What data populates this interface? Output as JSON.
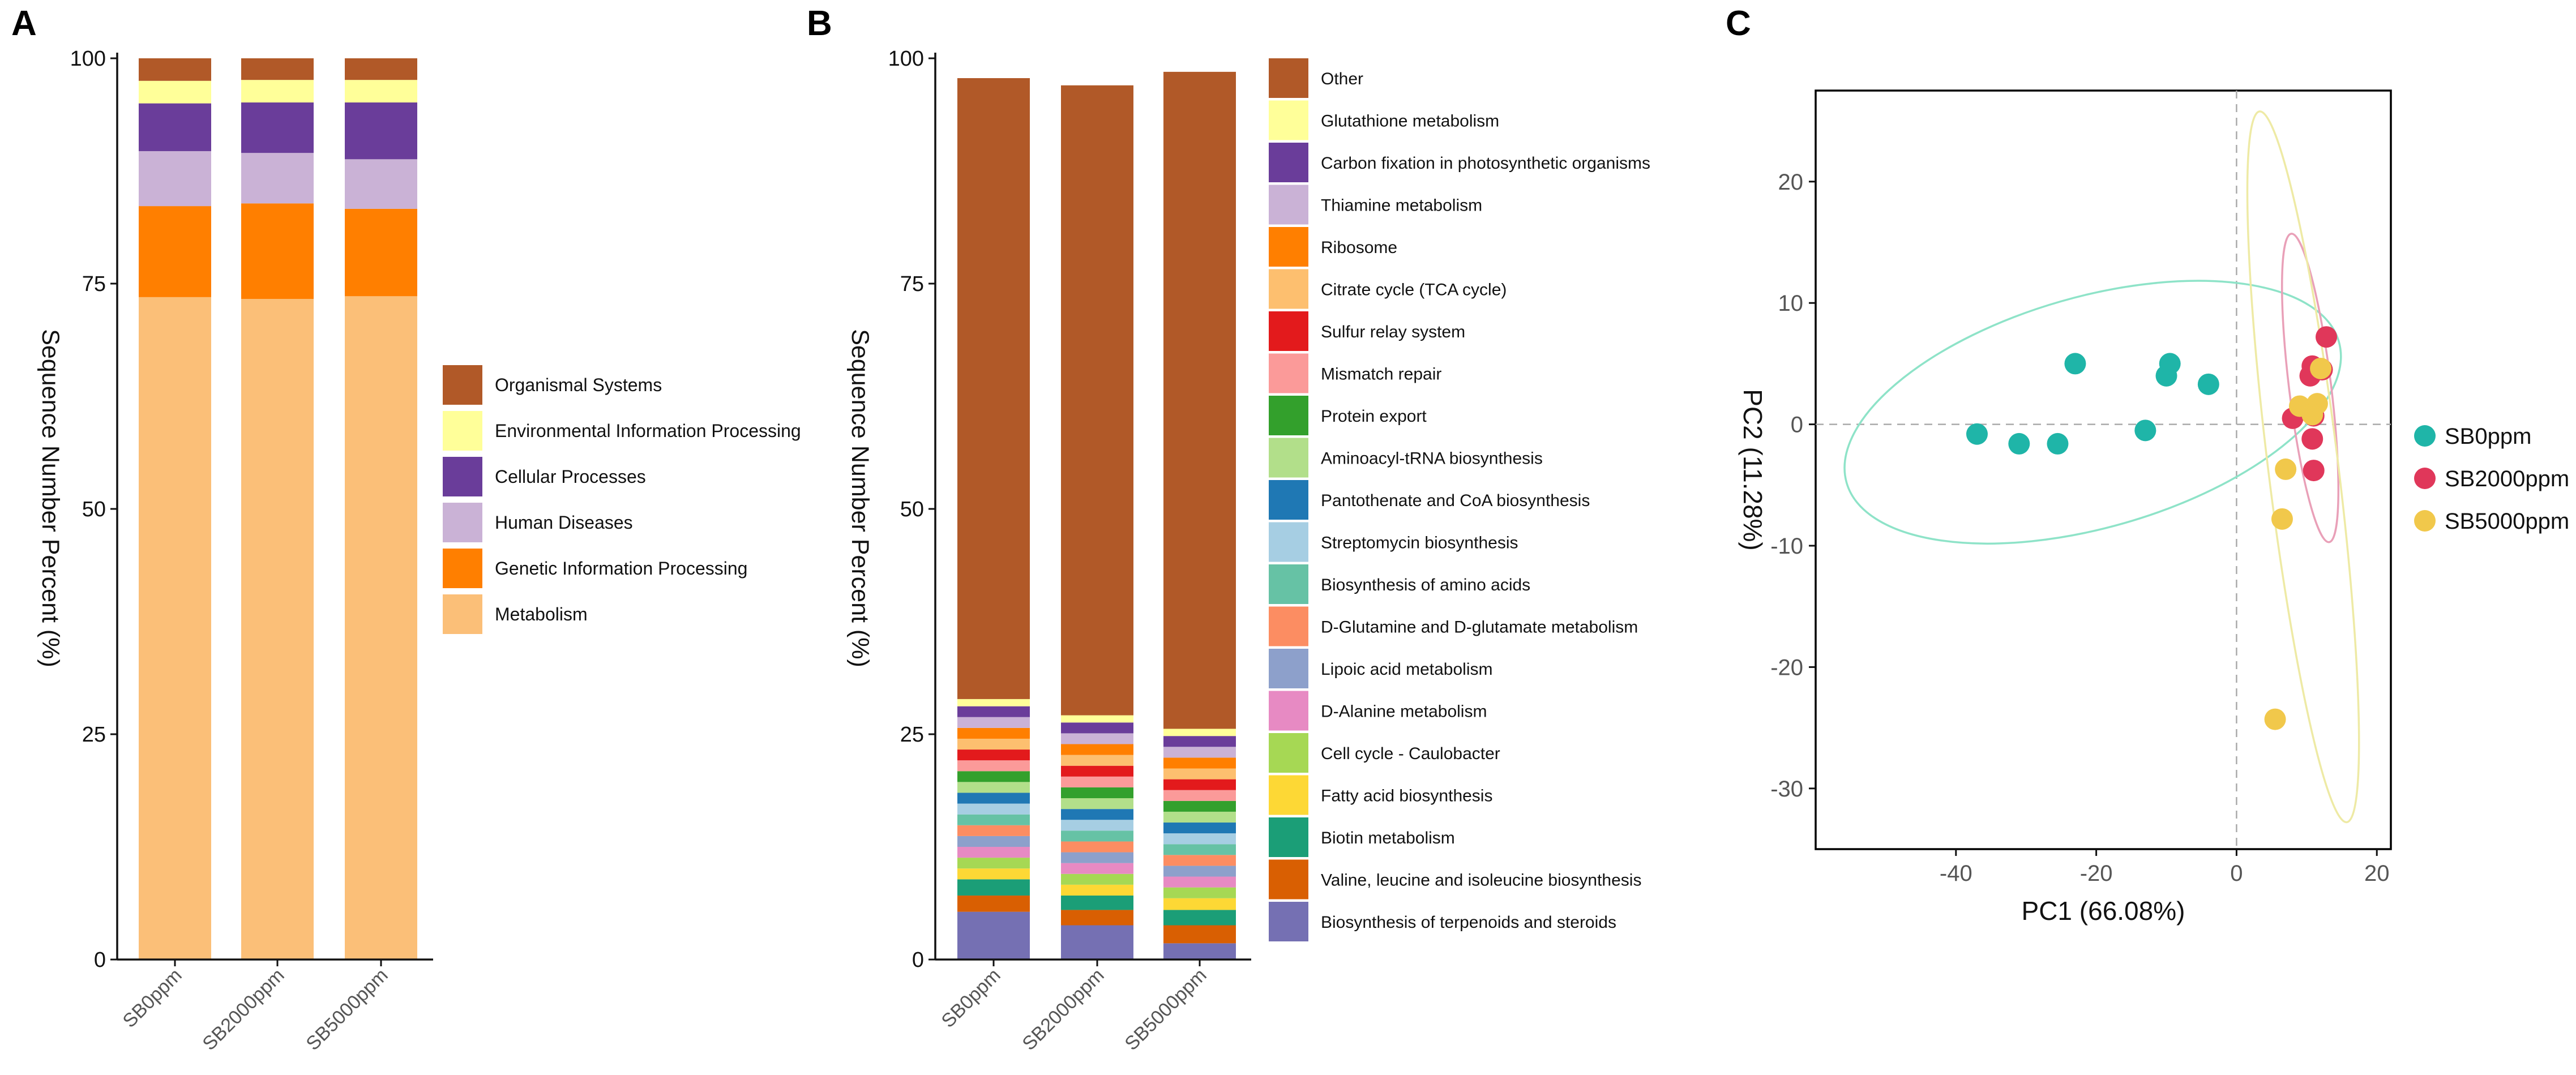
{
  "panel_labels": [
    "A",
    "B",
    "C"
  ],
  "chart_data": [
    {
      "type": "bar",
      "stacked": true,
      "panel": "A",
      "title": "",
      "xlabel": "",
      "ylabel": "Sequence Number Percent (%)",
      "ylim": [
        0,
        100
      ],
      "yticks": [
        "0",
        "25",
        "50",
        "75",
        "100"
      ],
      "categories": [
        "SB0ppm",
        "SB2000ppm",
        "SB5000ppm"
      ],
      "legend_position": "right",
      "series": [
        {
          "name": "Metabolism",
          "color": "#fbbf78",
          "values": [
            73.5,
            73.3,
            73.6
          ]
        },
        {
          "name": "Genetic Information Processing",
          "color": "#ff7f00",
          "values": [
            10.1,
            10.6,
            9.7
          ]
        },
        {
          "name": "Human Diseases",
          "color": "#cab2d6",
          "values": [
            6.1,
            5.6,
            5.5
          ]
        },
        {
          "name": "Cellular Processes",
          "color": "#6a3d9a",
          "values": [
            5.3,
            5.6,
            6.3
          ]
        },
        {
          "name": "Environmental Information Processing",
          "color": "#ffff99",
          "values": [
            2.5,
            2.5,
            2.5
          ]
        },
        {
          "name": "Organismal Systems",
          "color": "#b15928",
          "values": [
            2.5,
            2.4,
            2.4
          ]
        }
      ]
    },
    {
      "type": "bar",
      "stacked": true,
      "panel": "B",
      "title": "",
      "xlabel": "",
      "ylabel": "Sequence Number Percent (%)",
      "ylim": [
        0,
        100
      ],
      "yticks": [
        "0",
        "25",
        "50",
        "75",
        "100"
      ],
      "categories": [
        "SB0ppm",
        "SB2000ppm",
        "SB5000ppm"
      ],
      "legend_position": "right",
      "series": [
        {
          "name": "Biosynthesis of terpenoids and steroids",
          "color": "#7570b3",
          "values": [
            5.3,
            3.8,
            1.8
          ]
        },
        {
          "name": "Valine, leucine and isoleucine biosynthesis",
          "color": "#d95f02",
          "values": [
            1.8,
            1.7,
            2.0
          ]
        },
        {
          "name": "Biotin metabolism",
          "color": "#1b9e77",
          "values": [
            1.8,
            1.6,
            1.7
          ]
        },
        {
          "name": "Fatty acid biosynthesis",
          "color": "#fdd835",
          "values": [
            1.2,
            1.2,
            1.3
          ]
        },
        {
          "name": "Cell cycle - Caulobacter",
          "color": "#a6d854",
          "values": [
            1.2,
            1.2,
            1.2
          ]
        },
        {
          "name": "D-Alanine metabolism",
          "color": "#e78ac3",
          "values": [
            1.2,
            1.2,
            1.2
          ]
        },
        {
          "name": "Lipoic acid metabolism",
          "color": "#8da0cb",
          "values": [
            1.2,
            1.2,
            1.2
          ]
        },
        {
          "name": "D-Glutamine and D-glutamate metabolism",
          "color": "#fc8d62",
          "values": [
            1.2,
            1.2,
            1.2
          ]
        },
        {
          "name": "Biosynthesis of amino acids",
          "color": "#66c2a5",
          "values": [
            1.2,
            1.2,
            1.2
          ]
        },
        {
          "name": "Streptomycin biosynthesis",
          "color": "#a6cee3",
          "values": [
            1.2,
            1.2,
            1.2
          ]
        },
        {
          "name": "Pantothenate and CoA biosynthesis",
          "color": "#1f78b4",
          "values": [
            1.2,
            1.2,
            1.2
          ]
        },
        {
          "name": "Aminoacyl-tRNA biosynthesis",
          "color": "#b2df8a",
          "values": [
            1.2,
            1.2,
            1.2
          ]
        },
        {
          "name": "Protein export",
          "color": "#33a02c",
          "values": [
            1.2,
            1.2,
            1.2
          ]
        },
        {
          "name": "Mismatch repair",
          "color": "#fb9a99",
          "values": [
            1.2,
            1.2,
            1.2
          ]
        },
        {
          "name": "Sulfur relay system",
          "color": "#e31a1c",
          "values": [
            1.2,
            1.2,
            1.2
          ]
        },
        {
          "name": "Citrate cycle (TCA cycle)",
          "color": "#fdbf6f",
          "values": [
            1.2,
            1.2,
            1.2
          ]
        },
        {
          "name": "Ribosome",
          "color": "#ff7f00",
          "values": [
            1.2,
            1.2,
            1.2
          ]
        },
        {
          "name": "Thiamine metabolism",
          "color": "#cab2d6",
          "values": [
            1.2,
            1.2,
            1.2
          ]
        },
        {
          "name": "Carbon fixation in photosynthetic organisms",
          "color": "#6a3d9a",
          "values": [
            1.2,
            1.2,
            1.2
          ]
        },
        {
          "name": "Glutathione metabolism",
          "color": "#ffff99",
          "values": [
            0.8,
            0.8,
            0.8
          ]
        },
        {
          "name": "Other",
          "color": "#b15928",
          "values": [
            68.9,
            69.9,
            72.9
          ]
        }
      ]
    },
    {
      "type": "scatter",
      "panel": "C",
      "title": "",
      "xlabel": "PC1 (66.08%)",
      "ylabel": "PC2 (11.28%)",
      "xlim": [
        -60,
        22
      ],
      "ylim": [
        -35,
        27.5
      ],
      "xticks": [
        -40,
        -20,
        0,
        20
      ],
      "yticks": [
        -30,
        -20,
        -10,
        0,
        10,
        20
      ],
      "legend_position": "right",
      "reference_lines": {
        "x": 0,
        "y": 0
      },
      "series": [
        {
          "name": "SB0ppm",
          "color": "#1fb5a8",
          "ellipse_color": "#8ee3c8",
          "ellipse": {
            "cx": -20.5,
            "cy": 1.0,
            "rx": 36.5,
            "ry": 9.5,
            "angle_deg": 16
          },
          "points": [
            [
              -37,
              -0.8
            ],
            [
              -31,
              -1.6
            ],
            [
              -25.5,
              -1.6
            ],
            [
              -23,
              5.0
            ],
            [
              -13,
              -0.5
            ],
            [
              -10,
              4.0
            ],
            [
              -9.5,
              5.0
            ],
            [
              -4,
              3.3
            ]
          ]
        },
        {
          "name": "SB2000ppm",
          "color": "#e0375a",
          "ellipse_color": "#e9a0b8",
          "ellipse": {
            "cx": 10.5,
            "cy": 3.0,
            "rx": 3.0,
            "ry": 12.8,
            "angle_deg": 7
          },
          "points": [
            [
              12.8,
              7.2
            ],
            [
              10.8,
              4.8
            ],
            [
              10.5,
              4.0
            ],
            [
              12.2,
              4.5
            ],
            [
              8.0,
              0.5
            ],
            [
              11.0,
              0.7
            ],
            [
              10.8,
              -1.2
            ],
            [
              11.0,
              -3.8
            ]
          ]
        },
        {
          "name": "SB5000ppm",
          "color": "#f1c84b",
          "ellipse_color": "#eeeaa5",
          "ellipse": {
            "cx": 9.5,
            "cy": -3.5,
            "rx": 5.0,
            "ry": 29.5,
            "angle_deg": 7
          },
          "points": [
            [
              12.0,
              4.6
            ],
            [
              9.0,
              1.5
            ],
            [
              11.5,
              1.7
            ],
            [
              10.8,
              0.8
            ],
            [
              7.0,
              -3.7
            ],
            [
              6.5,
              -7.8
            ],
            [
              5.5,
              -24.3
            ]
          ]
        }
      ]
    }
  ]
}
